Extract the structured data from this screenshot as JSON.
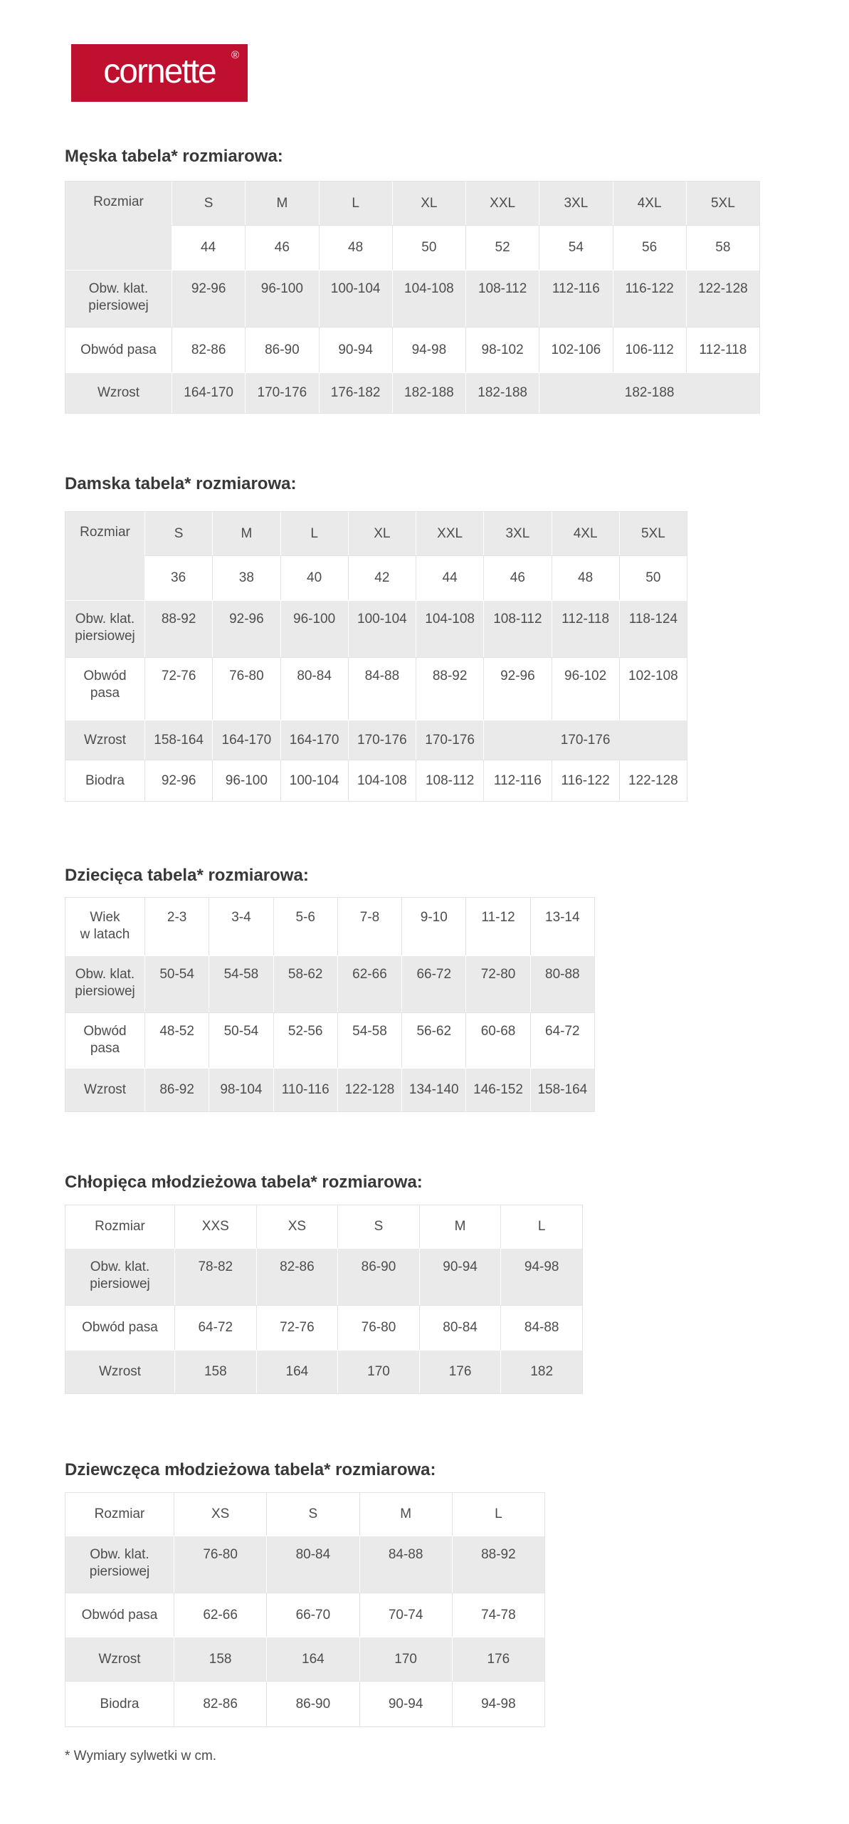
{
  "logo": {
    "text": "cornette",
    "mark": "®",
    "bg_color": "#c01030",
    "text_color": "#ffffff"
  },
  "men": {
    "title": "Męska tabela* rozmiarowa:",
    "corner": "Rozmiar",
    "sizes": [
      "S",
      "M",
      "L",
      "XL",
      "XXL",
      "3XL",
      "4XL",
      "5XL"
    ],
    "numbers": [
      "44",
      "46",
      "48",
      "50",
      "52",
      "54",
      "56",
      "58"
    ],
    "chest": {
      "label": "Obw. klat.\npiersiowej",
      "values": [
        "92-96",
        "96-100",
        "100-104",
        "104-108",
        "108-112",
        "112-116",
        "116-122",
        "122-128"
      ]
    },
    "waist": {
      "label": "Obwód pasa",
      "values": [
        "82-86",
        "86-90",
        "90-94",
        "94-98",
        "98-102",
        "102-106",
        "106-112",
        "112-118"
      ]
    },
    "height": {
      "label": "Wzrost",
      "values": [
        "164-170",
        "170-176",
        "176-182",
        "182-188",
        "182-188"
      ],
      "merged": "182-188"
    }
  },
  "women": {
    "title": "Damska tabela* rozmiarowa:",
    "corner": "Rozmiar",
    "sizes": [
      "S",
      "M",
      "L",
      "XL",
      "XXL",
      "3XL",
      "4XL",
      "5XL"
    ],
    "numbers": [
      "36",
      "38",
      "40",
      "42",
      "44",
      "46",
      "48",
      "50"
    ],
    "chest": {
      "label": "Obw. klat.\npiersiowej",
      "values": [
        "88-92",
        "92-96",
        "96-100",
        "100-104",
        "104-108",
        "108-112",
        "112-118",
        "118-124"
      ]
    },
    "waist": {
      "label": "Obwód\npasa",
      "values": [
        "72-76",
        "76-80",
        "80-84",
        "84-88",
        "88-92",
        "92-96",
        "96-102",
        "102-108"
      ]
    },
    "height": {
      "label": "Wzrost",
      "values": [
        "158-164",
        "164-170",
        "164-170",
        "170-176",
        "170-176"
      ],
      "merged": "170-176"
    },
    "hips": {
      "label": "Biodra",
      "values": [
        "92-96",
        "96-100",
        "100-104",
        "104-108",
        "108-112",
        "112-116",
        "116-122",
        "122-128"
      ]
    }
  },
  "kids": {
    "title": "Dziecięca tabela* rozmiarowa:",
    "corner": "Wiek\nw latach",
    "ages": [
      "2-3",
      "3-4",
      "5-6",
      "7-8",
      "9-10",
      "11-12",
      "13-14"
    ],
    "chest": {
      "label": "Obw. klat.\npiersiowej",
      "values": [
        "50-54",
        "54-58",
        "58-62",
        "62-66",
        "66-72",
        "72-80",
        "80-88"
      ]
    },
    "waist": {
      "label": "Obwód\npasa",
      "values": [
        "48-52",
        "50-54",
        "52-56",
        "54-58",
        "56-62",
        "60-68",
        "64-72"
      ]
    },
    "height": {
      "label": "Wzrost",
      "values": [
        "86-92",
        "98-104",
        "110-116",
        "122-128",
        "134-140",
        "146-152",
        "158-164"
      ]
    }
  },
  "boys": {
    "title": "Chłopięca młodzieżowa tabela* rozmiarowa:",
    "corner": "Rozmiar",
    "sizes": [
      "XXS",
      "XS",
      "S",
      "M",
      "L"
    ],
    "chest": {
      "label": "Obw. klat.\npiersiowej",
      "values": [
        "78-82",
        "82-86",
        "86-90",
        "90-94",
        "94-98"
      ]
    },
    "waist": {
      "label": "Obwód pasa",
      "values": [
        "64-72",
        "72-76",
        "76-80",
        "80-84",
        "84-88"
      ]
    },
    "height": {
      "label": "Wzrost",
      "values": [
        "158",
        "164",
        "170",
        "176",
        "182"
      ]
    }
  },
  "girls": {
    "title": "Dziewczęca młodzieżowa tabela* rozmiarowa:",
    "corner": "Rozmiar",
    "sizes": [
      "XS",
      "S",
      "M",
      "L"
    ],
    "chest": {
      "label": "Obw. klat.\npiersiowej",
      "values": [
        "76-80",
        "80-84",
        "84-88",
        "88-92"
      ]
    },
    "waist": {
      "label": "Obwód pasa",
      "values": [
        "62-66",
        "66-70",
        "70-74",
        "74-78"
      ]
    },
    "height": {
      "label": "Wzrost",
      "values": [
        "158",
        "164",
        "170",
        "176"
      ]
    },
    "hips": {
      "label": "Biodra",
      "values": [
        "82-86",
        "86-90",
        "90-94",
        "94-98"
      ]
    }
  },
  "footnote": "* Wymiary sylwetki w cm."
}
